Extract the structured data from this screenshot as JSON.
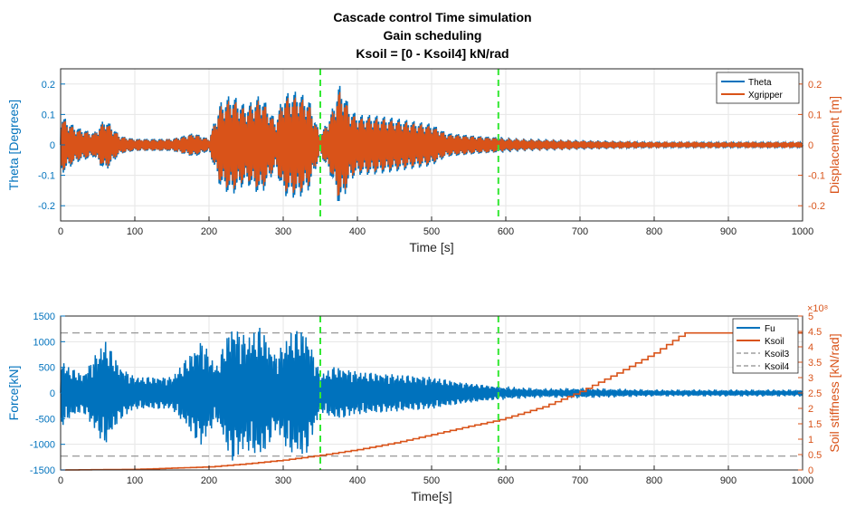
{
  "colors": {
    "blue": "#0072BD",
    "orange": "#D95319",
    "green_dashed": "#33E833",
    "ref_dashed": "#8C8C8C",
    "axis": "#262626",
    "grid": "#E6E6E6"
  },
  "chart_data": [
    {
      "type": "line",
      "title": [
        "Cascade control Time simulation",
        "Gain scheduling",
        "Ksoil = [0 - Ksoil4] kN/rad"
      ],
      "xlabel": "Time [s]",
      "ylabel": "Theta [Degrees]",
      "ylabel_right": "Displacement [m]",
      "xlim": [
        0,
        1000
      ],
      "ylim": [
        -0.25,
        0.25
      ],
      "ylim_right": [
        -0.25,
        0.25
      ],
      "xticks": [
        "0",
        "100",
        "200",
        "300",
        "400",
        "500",
        "600",
        "700",
        "800",
        "900",
        "1000"
      ],
      "yticks": [
        "-0.2",
        "-0.1",
        "0",
        "0.1",
        "0.2"
      ],
      "yticks_right": [
        "-0.2",
        "-0.1",
        "0",
        "0.1",
        "0.2"
      ],
      "grid": true,
      "legend": {
        "placement": "top-right",
        "entries": [
          "Theta",
          "Xgripper"
        ]
      },
      "vlines_x": [
        350,
        590
      ],
      "envelope_description_points": {
        "x": [
          0,
          20,
          45,
          60,
          80,
          100,
          150,
          180,
          200,
          215,
          230,
          250,
          270,
          290,
          300,
          320,
          335,
          350,
          365,
          375,
          380,
          390,
          400,
          420,
          450,
          500,
          520,
          560,
          590,
          620,
          700,
          800,
          900,
          1000
        ],
        "amplitude": [
          0.1,
          0.06,
          0.04,
          0.09,
          0.03,
          0.02,
          0.02,
          0.04,
          0.02,
          0.14,
          0.17,
          0.13,
          0.17,
          0.08,
          0.17,
          0.18,
          0.15,
          0.03,
          0.11,
          0.2,
          0.19,
          0.12,
          0.1,
          0.1,
          0.09,
          0.07,
          0.04,
          0.03,
          0.025,
          0.02,
          0.015,
          0.01,
          0.01,
          0.01
        ]
      },
      "series": [
        {
          "name": "Theta",
          "color": "#0072BD"
        },
        {
          "name": "Xgripper",
          "color": "#D95319"
        }
      ]
    },
    {
      "type": "line",
      "xlabel": "Time[s]",
      "ylabel": "Force[kN]",
      "ylabel_right": "Soil stiffness [kN/rad]",
      "right_axis_exponent": "×10⁸",
      "xlim": [
        0,
        1000
      ],
      "ylim": [
        -1500,
        1500
      ],
      "ylim_right": [
        0,
        5
      ],
      "xticks": [
        "0",
        "100",
        "200",
        "300",
        "400",
        "500",
        "600",
        "700",
        "800",
        "900",
        "1000"
      ],
      "yticks": [
        "-1500",
        "-1000",
        "-500",
        "0",
        "500",
        "1000",
        "1500"
      ],
      "yticks_right": [
        "0",
        "0.5",
        "1",
        "1.5",
        "2",
        "2.5",
        "3",
        "3.5",
        "4",
        "4.5",
        "5"
      ],
      "grid": true,
      "legend": {
        "placement": "top-right",
        "entries": [
          "Fu",
          "Ksoil",
          "Ksoil3",
          "Ksoil4"
        ]
      },
      "vlines_x": [
        350,
        590
      ],
      "hlines_right": [
        {
          "name": "Ksoil3",
          "value": 0.45
        },
        {
          "name": "Ksoil4",
          "value": 4.45
        }
      ],
      "force_envelope": {
        "x": [
          0,
          10,
          30,
          60,
          80,
          100,
          150,
          190,
          210,
          230,
          250,
          270,
          290,
          310,
          330,
          350,
          370,
          400,
          450,
          500,
          540,
          590,
          650,
          700,
          800,
          1000
        ],
        "amplitude": [
          650,
          500,
          350,
          1000,
          500,
          300,
          300,
          1000,
          500,
          1300,
          1050,
          1250,
          700,
          1150,
          1200,
          350,
          500,
          400,
          350,
          300,
          200,
          120,
          80,
          90,
          60,
          60
        ]
      },
      "ksoil": {
        "x": [
          0,
          100,
          200,
          250,
          300,
          350,
          400,
          450,
          500,
          550,
          590,
          650,
          700,
          750,
          800,
          840,
          850,
          1000
        ],
        "y": [
          0,
          0.02,
          0.1,
          0.2,
          0.32,
          0.48,
          0.66,
          0.88,
          1.15,
          1.42,
          1.62,
          2.05,
          2.55,
          3.15,
          3.8,
          4.45,
          4.45,
          4.45
        ]
      },
      "series": [
        {
          "name": "Fu",
          "color": "#0072BD"
        },
        {
          "name": "Ksoil",
          "color": "#D95319"
        },
        {
          "name": "Ksoil3",
          "color": "#8C8C8C"
        },
        {
          "name": "Ksoil4",
          "color": "#8C8C8C"
        }
      ]
    }
  ]
}
